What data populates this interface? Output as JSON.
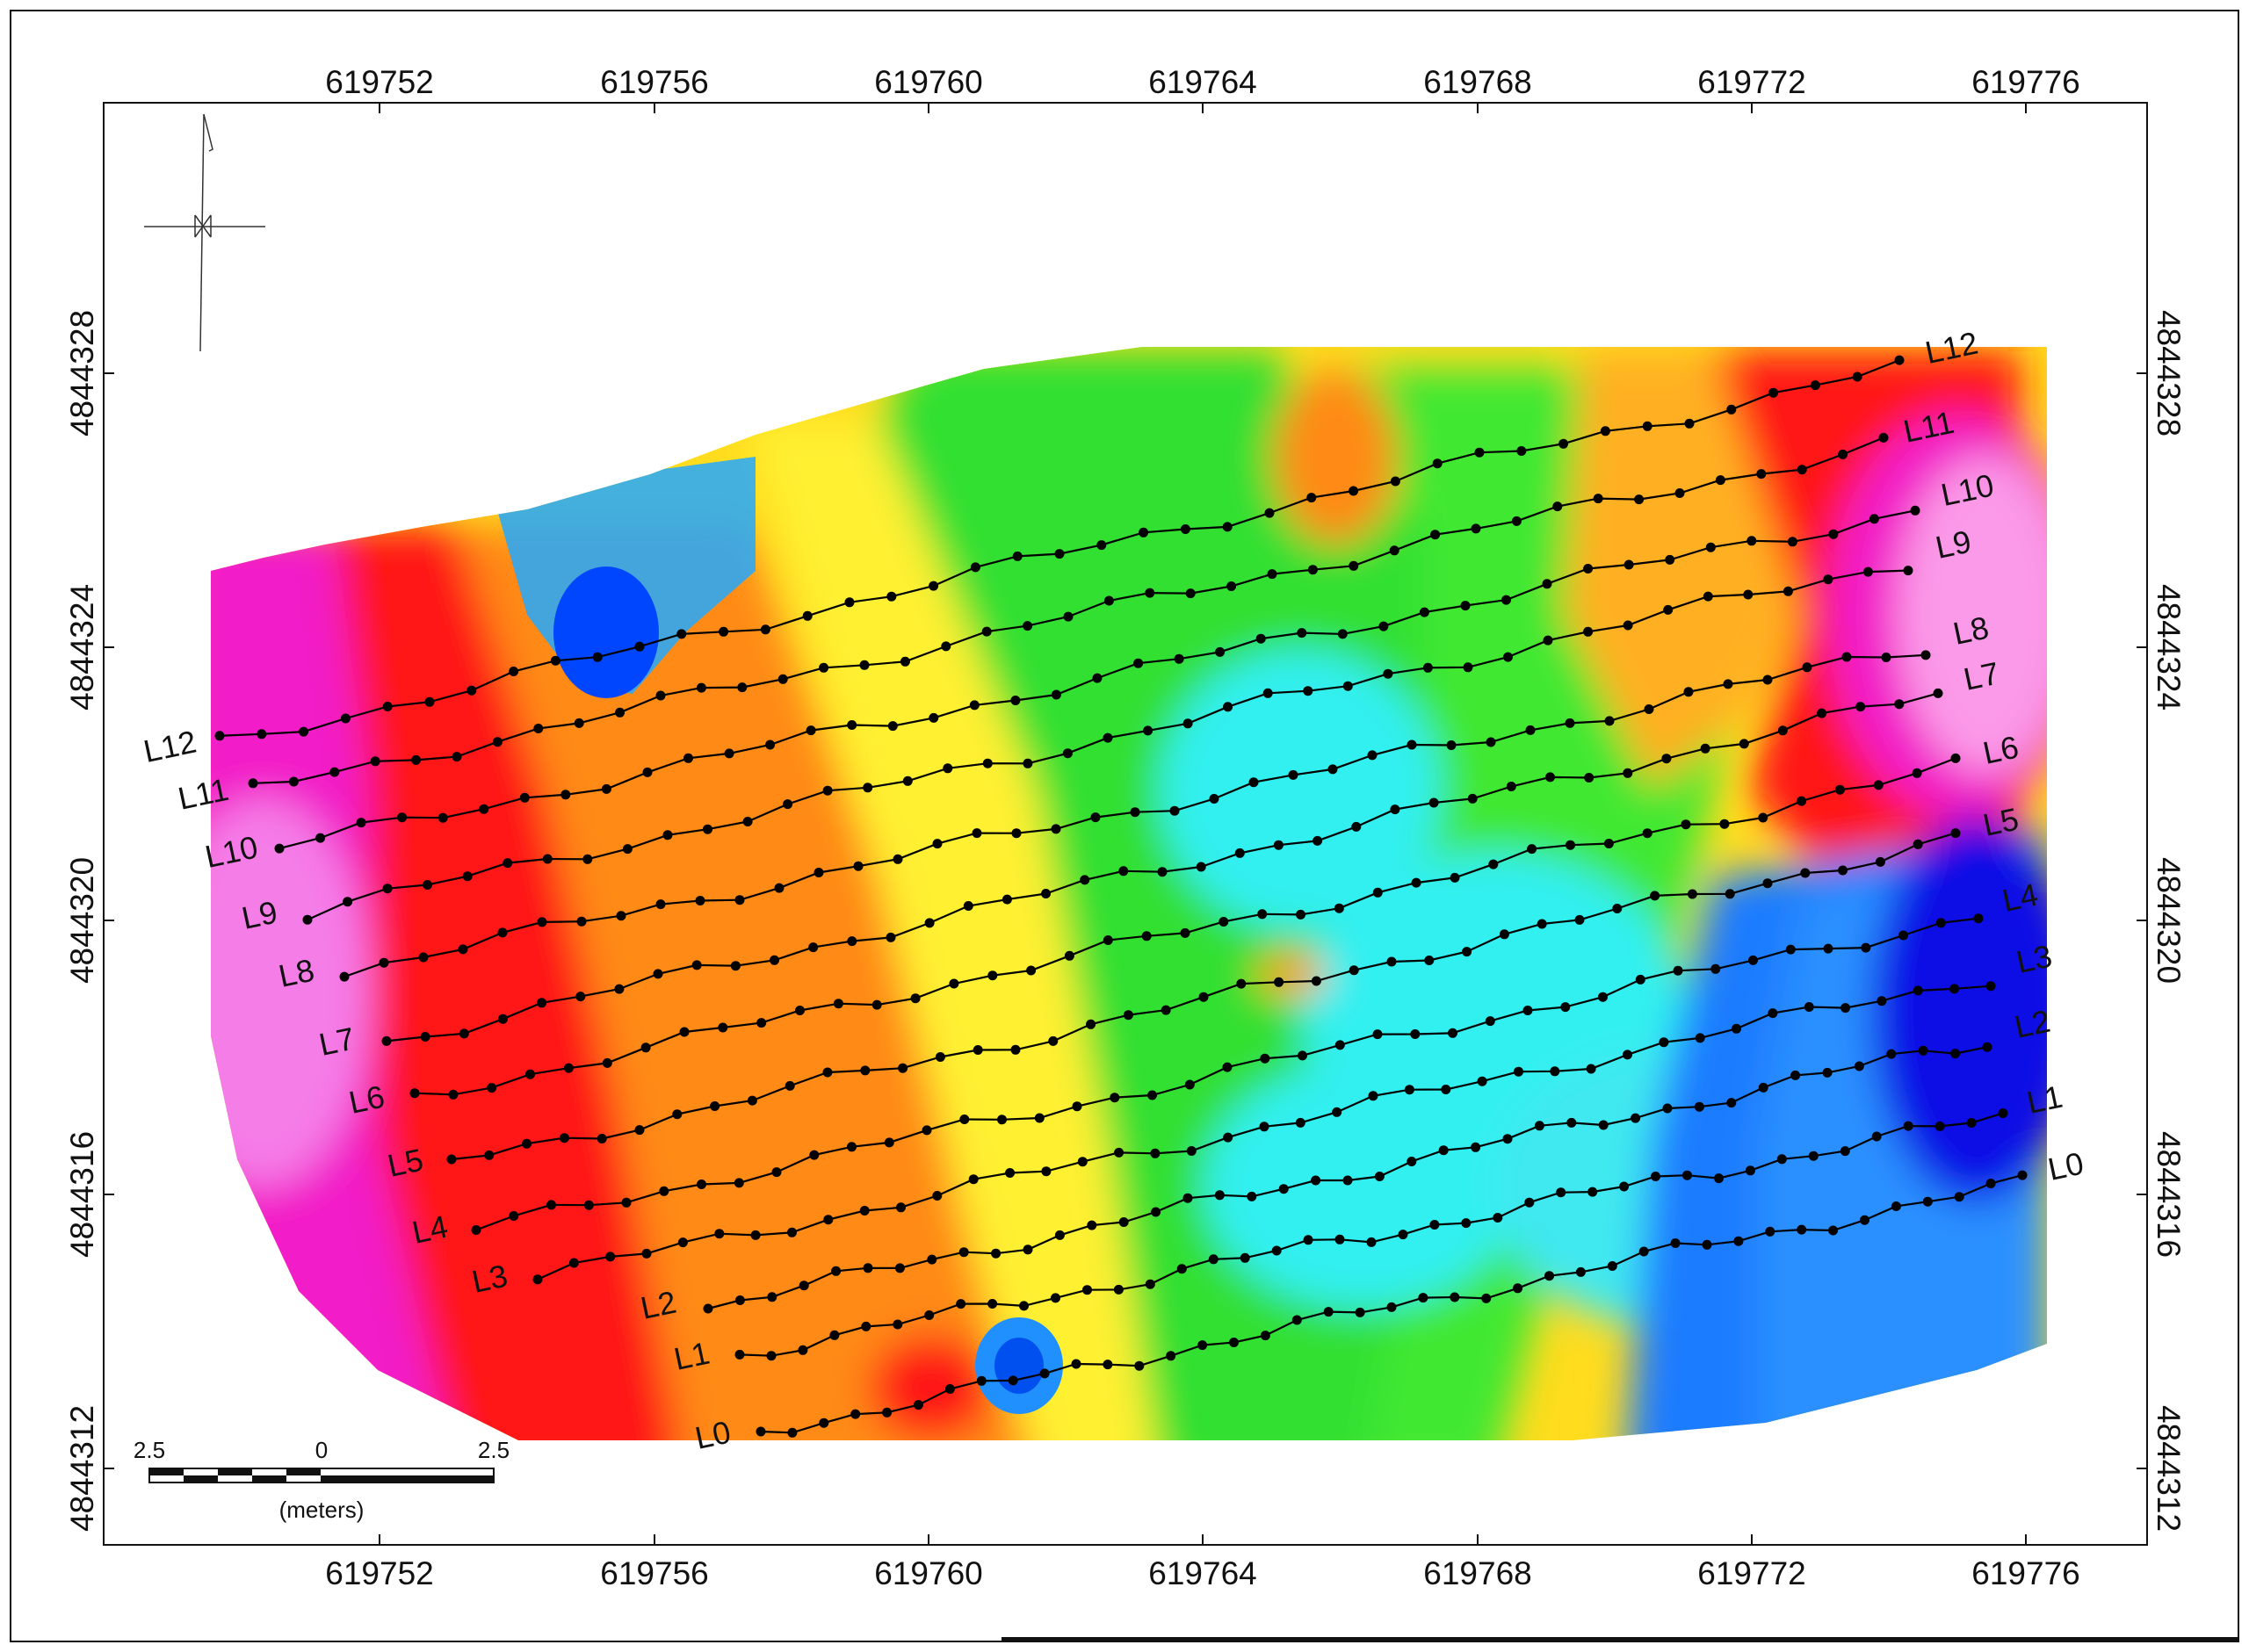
{
  "map": {
    "x_ticks": [
      "619752",
      "619756",
      "619760",
      "619764",
      "619768",
      "619772",
      "619776"
    ],
    "y_ticks": [
      "4844312",
      "4844316",
      "4844320",
      "4844324",
      "4844328"
    ],
    "line_names": [
      "L0",
      "L1",
      "L2",
      "L3",
      "L4",
      "L5",
      "L6",
      "L7",
      "L8",
      "L9",
      "L10",
      "L11",
      "L12"
    ],
    "scale_bar": {
      "left_label": "2.5",
      "center_label": "0",
      "right_label": "2.5",
      "unit_label": "(meters)"
    },
    "north_arrow": "north-arrow",
    "colors": {
      "magenta": "#f018c8",
      "red": "#ff1010",
      "orange": "#ff8c14",
      "yellow": "#ffff20",
      "green": "#20e020",
      "cyan": "#20f0f0",
      "blue": "#0050ff",
      "deep_blue": "#0010e0",
      "survey_line": "#000000"
    }
  }
}
